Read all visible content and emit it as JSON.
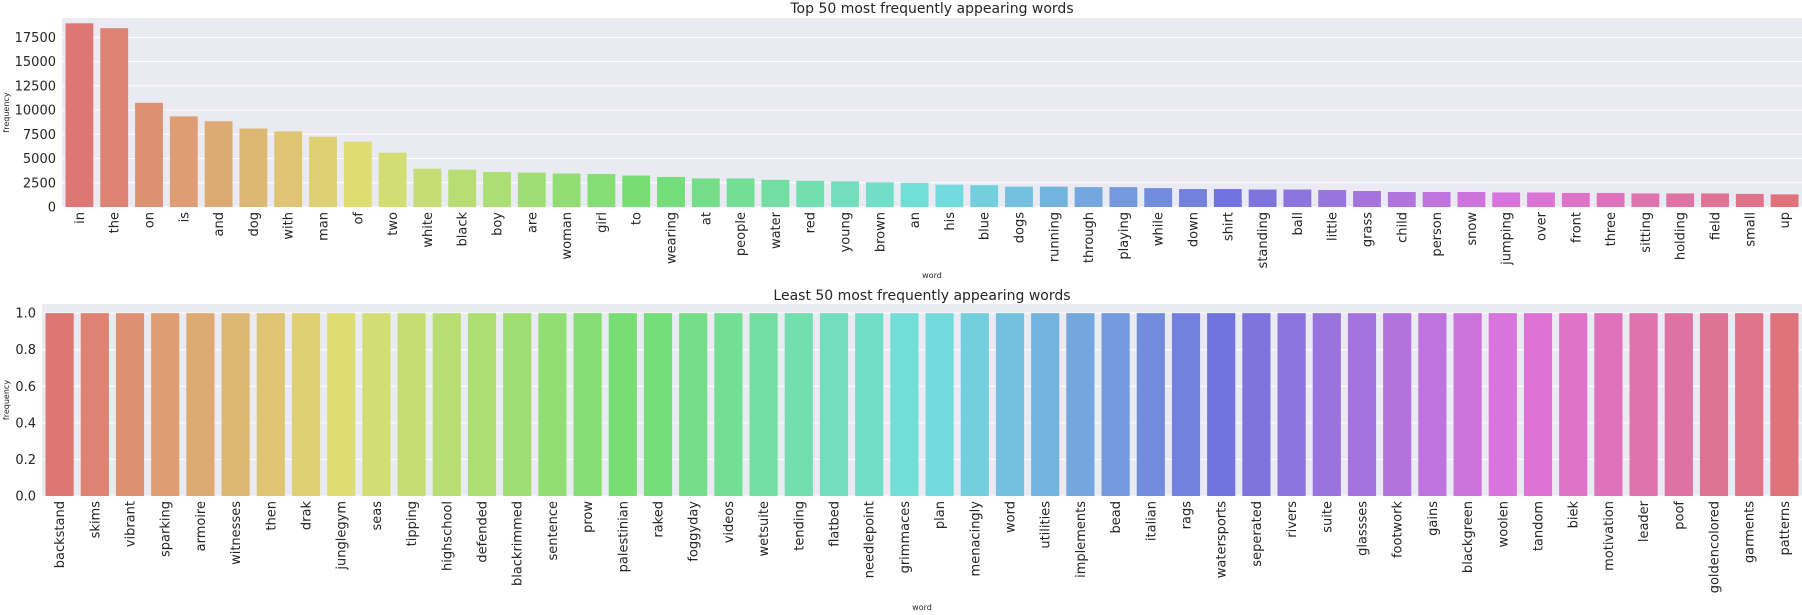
{
  "chart_data": [
    {
      "type": "bar",
      "title": "Top 50 most frequently appearing words",
      "xlabel": "word",
      "ylabel": "frequency",
      "ylim": [
        0,
        19500
      ],
      "yticks": [
        0,
        2500,
        5000,
        7500,
        10000,
        12500,
        15000,
        17500
      ],
      "grid": true,
      "categories": [
        "in",
        "the",
        "on",
        "is",
        "and",
        "dog",
        "with",
        "man",
        "of",
        "two",
        "white",
        "black",
        "boy",
        "are",
        "woman",
        "girl",
        "to",
        "wearing",
        "at",
        "people",
        "water",
        "red",
        "young",
        "brown",
        "an",
        "his",
        "blue",
        "dogs",
        "running",
        "through",
        "playing",
        "while",
        "down",
        "shirt",
        "standing",
        "ball",
        "little",
        "grass",
        "child",
        "person",
        "snow",
        "jumping",
        "over",
        "front",
        "three",
        "sitting",
        "holding",
        "field",
        "small",
        "up"
      ],
      "values": [
        18950,
        18450,
        10750,
        9350,
        8850,
        8100,
        7800,
        7250,
        6750,
        5600,
        3950,
        3850,
        3600,
        3550,
        3450,
        3400,
        3250,
        3100,
        2950,
        2950,
        2800,
        2700,
        2650,
        2550,
        2500,
        2300,
        2250,
        2100,
        2100,
        2050,
        2050,
        1950,
        1850,
        1850,
        1800,
        1800,
        1750,
        1650,
        1550,
        1550,
        1550,
        1500,
        1500,
        1450,
        1450,
        1400,
        1400,
        1400,
        1350,
        1300
      ]
    },
    {
      "type": "bar",
      "title": "Least 50 most frequently appearing words",
      "xlabel": "word",
      "ylabel": "frequency",
      "ylim": [
        0,
        1.05
      ],
      "yticks": [
        0.0,
        0.2,
        0.4,
        0.6,
        0.8,
        1.0
      ],
      "grid": true,
      "categories": [
        "backstand",
        "skims",
        "vibrant",
        "sparking",
        "armoire",
        "witnesses",
        "then",
        "drak",
        "junglegym",
        "seas",
        "tipping",
        "highschool",
        "defended",
        "blackrimmed",
        "sentence",
        "prow",
        "palestinian",
        "raked",
        "foggyday",
        "videos",
        "wetsuite",
        "tending",
        "flatbed",
        "needlepoint",
        "grimmaces",
        "plan",
        "menacingly",
        "word",
        "utilities",
        "implements",
        "bead",
        "italian",
        "rags",
        "watersports",
        "seperated",
        "rivers",
        "suite",
        "glassses",
        "footwork",
        "gains",
        "blackgreen",
        "woolen",
        "tandom",
        "biek",
        "motivation",
        "leader",
        "poof",
        "goldencolored",
        "garments",
        "patterns"
      ],
      "values": [
        1,
        1,
        1,
        1,
        1,
        1,
        1,
        1,
        1,
        1,
        1,
        1,
        1,
        1,
        1,
        1,
        1,
        1,
        1,
        1,
        1,
        1,
        1,
        1,
        1,
        1,
        1,
        1,
        1,
        1,
        1,
        1,
        1,
        1,
        1,
        1,
        1,
        1,
        1,
        1,
        1,
        1,
        1,
        1,
        1,
        1,
        1,
        1,
        1,
        1
      ]
    }
  ],
  "colors": {
    "plot_bg": "#eaeaf2",
    "grid": "#ffffff",
    "text": "#262626"
  }
}
